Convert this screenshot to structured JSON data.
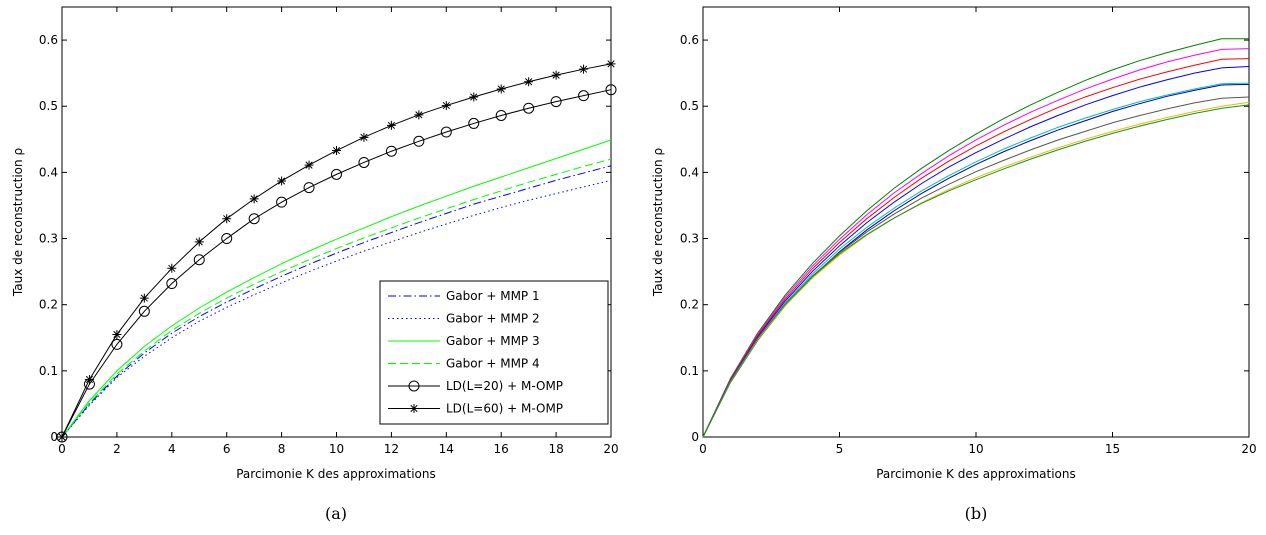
{
  "chart_data": [
    {
      "type": "line",
      "caption": "(a)",
      "xlabel": "Parcimonie K des approximations",
      "ylabel": "Taux de reconstruction ρ",
      "xlim": [
        0,
        20
      ],
      "ylim": [
        0,
        0.65
      ],
      "xticks": [
        "0",
        "2",
        "4",
        "6",
        "8",
        "10",
        "12",
        "14",
        "16",
        "18",
        "20"
      ],
      "yticks": [
        "0",
        "0.1",
        "0.2",
        "0.3",
        "0.4",
        "0.5",
        "0.6"
      ],
      "legend_position": "bottom-right",
      "grid": false,
      "series": [
        {
          "name": "Gabor + MMP 1",
          "color": "#0000ff",
          "dash": "dash-dot",
          "marker": "none",
          "x": [
            0,
            1,
            2,
            3,
            4,
            5,
            6,
            7,
            8,
            9,
            10,
            11,
            12,
            13,
            14,
            15,
            16,
            17,
            18,
            19,
            20
          ],
          "values": [
            0,
            0.05,
            0.092,
            0.127,
            0.157,
            0.182,
            0.204,
            0.224,
            0.243,
            0.261,
            0.278,
            0.294,
            0.309,
            0.324,
            0.338,
            0.352,
            0.364,
            0.376,
            0.388,
            0.399,
            0.41
          ]
        },
        {
          "name": "Gabor + MMP 2",
          "color": "#0000ff",
          "dash": "dotted",
          "marker": "none",
          "x": [
            0,
            1,
            2,
            3,
            4,
            5,
            6,
            7,
            8,
            9,
            10,
            11,
            12,
            13,
            14,
            15,
            16,
            17,
            18,
            19,
            20
          ],
          "values": [
            0,
            0.048,
            0.09,
            0.122,
            0.15,
            0.175,
            0.196,
            0.215,
            0.233,
            0.25,
            0.266,
            0.281,
            0.295,
            0.309,
            0.322,
            0.335,
            0.347,
            0.358,
            0.368,
            0.378,
            0.388
          ]
        },
        {
          "name": "Gabor + MMP 3",
          "color": "#00ff00",
          "dash": "solid",
          "marker": "none",
          "x": [
            0,
            1,
            2,
            3,
            4,
            5,
            6,
            7,
            8,
            9,
            10,
            11,
            12,
            13,
            14,
            15,
            16,
            17,
            18,
            19,
            20
          ],
          "values": [
            0,
            0.055,
            0.1,
            0.137,
            0.168,
            0.195,
            0.219,
            0.241,
            0.262,
            0.281,
            0.299,
            0.316,
            0.333,
            0.349,
            0.364,
            0.379,
            0.393,
            0.407,
            0.421,
            0.435,
            0.449
          ]
        },
        {
          "name": "Gabor + MMP 4",
          "color": "#00ff00",
          "dash": "dashed",
          "marker": "none",
          "x": [
            0,
            1,
            2,
            3,
            4,
            5,
            6,
            7,
            8,
            9,
            10,
            11,
            12,
            13,
            14,
            15,
            16,
            17,
            18,
            19,
            20
          ],
          "values": [
            0,
            0.052,
            0.095,
            0.13,
            0.161,
            0.187,
            0.21,
            0.231,
            0.25,
            0.268,
            0.285,
            0.301,
            0.316,
            0.331,
            0.345,
            0.359,
            0.372,
            0.385,
            0.397,
            0.409,
            0.42
          ]
        },
        {
          "name": "LD(L=20) + M-OMP",
          "color": "#000000",
          "dash": "solid",
          "marker": "circle",
          "x": [
            0,
            1,
            2,
            3,
            4,
            5,
            6,
            7,
            8,
            9,
            10,
            11,
            12,
            13,
            14,
            15,
            16,
            17,
            18,
            19,
            20
          ],
          "values": [
            0,
            0.08,
            0.14,
            0.19,
            0.232,
            0.268,
            0.3,
            0.33,
            0.355,
            0.377,
            0.397,
            0.415,
            0.432,
            0.447,
            0.461,
            0.474,
            0.486,
            0.497,
            0.507,
            0.516,
            0.525
          ]
        },
        {
          "name": "LD(L=60) + M-OMP",
          "color": "#000000",
          "dash": "solid",
          "marker": "star",
          "x": [
            0,
            1,
            2,
            3,
            4,
            5,
            6,
            7,
            8,
            9,
            10,
            11,
            12,
            13,
            14,
            15,
            16,
            17,
            18,
            19,
            20
          ],
          "values": [
            0,
            0.087,
            0.155,
            0.21,
            0.255,
            0.295,
            0.33,
            0.36,
            0.387,
            0.411,
            0.433,
            0.453,
            0.471,
            0.487,
            0.501,
            0.514,
            0.526,
            0.537,
            0.547,
            0.556,
            0.564
          ]
        }
      ]
    },
    {
      "type": "line",
      "caption": "(b)",
      "xlabel": "Parcimonie K des approximations",
      "ylabel": "Taux de reconstruction ρ",
      "xlim": [
        0,
        20
      ],
      "ylim": [
        0,
        0.65
      ],
      "xticks": [
        "0",
        "5",
        "10",
        "15",
        "20"
      ],
      "yticks": [
        "0",
        "0.1",
        "0.2",
        "0.3",
        "0.4",
        "0.5",
        "0.6"
      ],
      "grid": false,
      "series": [
        {
          "color": "#008000",
          "x": [
            0,
            1,
            2,
            3,
            4,
            5,
            6,
            7,
            8,
            9,
            10,
            11,
            12,
            13,
            14,
            15,
            16,
            17,
            18,
            19,
            20
          ],
          "values": [
            0,
            0.088,
            0.157,
            0.214,
            0.262,
            0.304,
            0.342,
            0.376,
            0.406,
            0.433,
            0.458,
            0.481,
            0.502,
            0.521,
            0.539,
            0.555,
            0.569,
            0.581,
            0.592,
            0.602,
            0.602
          ]
        },
        {
          "color": "#ff00ff",
          "x": [
            0,
            1,
            2,
            3,
            4,
            5,
            6,
            7,
            8,
            9,
            10,
            11,
            12,
            13,
            14,
            15,
            16,
            17,
            18,
            19,
            20
          ],
          "values": [
            0,
            0.087,
            0.155,
            0.211,
            0.258,
            0.299,
            0.336,
            0.369,
            0.398,
            0.425,
            0.449,
            0.471,
            0.491,
            0.509,
            0.526,
            0.541,
            0.555,
            0.567,
            0.577,
            0.586,
            0.587
          ]
        },
        {
          "color": "#ff0000",
          "x": [
            0,
            1,
            2,
            3,
            4,
            5,
            6,
            7,
            8,
            9,
            10,
            11,
            12,
            13,
            14,
            15,
            16,
            17,
            18,
            19,
            20
          ],
          "values": [
            0,
            0.086,
            0.153,
            0.208,
            0.254,
            0.294,
            0.33,
            0.362,
            0.391,
            0.417,
            0.44,
            0.461,
            0.48,
            0.498,
            0.514,
            0.528,
            0.541,
            0.552,
            0.562,
            0.571,
            0.572
          ]
        },
        {
          "color": "#0000ff",
          "x": [
            0,
            1,
            2,
            3,
            4,
            5,
            6,
            7,
            8,
            9,
            10,
            11,
            12,
            13,
            14,
            15,
            16,
            17,
            18,
            19,
            20
          ],
          "values": [
            0,
            0.085,
            0.151,
            0.205,
            0.25,
            0.289,
            0.324,
            0.355,
            0.383,
            0.408,
            0.43,
            0.45,
            0.469,
            0.486,
            0.502,
            0.516,
            0.529,
            0.54,
            0.55,
            0.558,
            0.56
          ]
        },
        {
          "color": "#00bfbf",
          "x": [
            0,
            1,
            2,
            3,
            4,
            5,
            6,
            7,
            8,
            9,
            10,
            11,
            12,
            13,
            14,
            15,
            16,
            17,
            18,
            19,
            20
          ],
          "values": [
            0,
            0.084,
            0.149,
            0.202,
            0.246,
            0.284,
            0.317,
            0.346,
            0.372,
            0.395,
            0.416,
            0.435,
            0.452,
            0.468,
            0.482,
            0.495,
            0.507,
            0.517,
            0.526,
            0.534,
            0.535
          ]
        },
        {
          "color": "#0000aa",
          "x": [
            0,
            1,
            2,
            3,
            4,
            5,
            6,
            7,
            8,
            9,
            10,
            11,
            12,
            13,
            14,
            15,
            16,
            17,
            18,
            19,
            20
          ],
          "values": [
            0,
            0.082,
            0.146,
            0.198,
            0.242,
            0.28,
            0.313,
            0.342,
            0.368,
            0.391,
            0.412,
            0.431,
            0.448,
            0.464,
            0.478,
            0.492,
            0.504,
            0.515,
            0.524,
            0.532,
            0.533
          ]
        },
        {
          "color": "#555555",
          "x": [
            0,
            1,
            2,
            3,
            4,
            5,
            6,
            7,
            8,
            9,
            10,
            11,
            12,
            13,
            14,
            15,
            16,
            17,
            18,
            19,
            20
          ],
          "values": [
            0,
            0.083,
            0.148,
            0.2,
            0.243,
            0.279,
            0.31,
            0.337,
            0.361,
            0.382,
            0.401,
            0.418,
            0.434,
            0.449,
            0.462,
            0.475,
            0.486,
            0.496,
            0.505,
            0.512,
            0.514
          ]
        },
        {
          "color": "#e0c000",
          "x": [
            0,
            1,
            2,
            3,
            4,
            5,
            6,
            7,
            8,
            9,
            10,
            11,
            12,
            13,
            14,
            15,
            16,
            17,
            18,
            19,
            20
          ],
          "values": [
            0,
            0.083,
            0.147,
            0.198,
            0.24,
            0.275,
            0.305,
            0.331,
            0.354,
            0.374,
            0.392,
            0.408,
            0.423,
            0.437,
            0.45,
            0.462,
            0.473,
            0.483,
            0.492,
            0.5,
            0.506
          ]
        },
        {
          "color": "#228b22",
          "x": [
            0,
            1,
            2,
            3,
            4,
            5,
            6,
            7,
            8,
            9,
            10,
            11,
            12,
            13,
            14,
            15,
            16,
            17,
            18,
            19,
            20
          ],
          "values": [
            0,
            0.084,
            0.149,
            0.2,
            0.242,
            0.277,
            0.306,
            0.331,
            0.353,
            0.372,
            0.389,
            0.405,
            0.42,
            0.434,
            0.447,
            0.459,
            0.47,
            0.48,
            0.489,
            0.497,
            0.502
          ]
        }
      ]
    }
  ]
}
